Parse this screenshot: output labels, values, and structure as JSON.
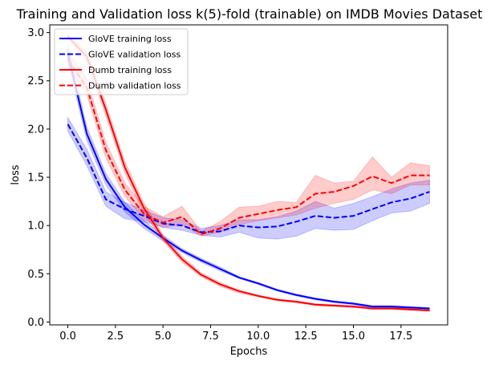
{
  "chart_data": {
    "type": "line",
    "title": "Training and Validation loss k(5)-fold (trainable) on IMDB Movies Dataset",
    "xlabel": "Epochs",
    "ylabel": "loss",
    "xlim": [
      -0.95,
      19.95
    ],
    "ylim": [
      -0.03,
      3.08
    ],
    "xticks": [
      0.0,
      2.5,
      5.0,
      7.5,
      10.0,
      12.5,
      15.0,
      17.5
    ],
    "xtick_labels": [
      "0.0",
      "2.5",
      "5.0",
      "7.5",
      "10.0",
      "12.5",
      "15.0",
      "17.5"
    ],
    "yticks": [
      0.0,
      0.5,
      1.0,
      1.5,
      2.0,
      2.5,
      3.0
    ],
    "ytick_labels": [
      "0.0",
      "0.5",
      "1.0",
      "1.5",
      "2.0",
      "2.5",
      "3.0"
    ],
    "legend_position": "top-left",
    "grid": false,
    "x": [
      0,
      1,
      2,
      3,
      4,
      5,
      6,
      7,
      8,
      9,
      10,
      11,
      12,
      13,
      14,
      15,
      16,
      17,
      18,
      19
    ],
    "series": [
      {
        "name": "GloVE training loss",
        "color": "#0000ff",
        "dash": "solid",
        "values": [
          2.78,
          1.95,
          1.48,
          1.19,
          1.01,
          0.87,
          0.74,
          0.64,
          0.55,
          0.46,
          0.4,
          0.33,
          0.28,
          0.24,
          0.21,
          0.19,
          0.16,
          0.16,
          0.15,
          0.14
        ],
        "band_lower": [
          2.7,
          1.88,
          1.42,
          1.14,
          0.97,
          0.84,
          0.72,
          0.62,
          0.53,
          0.45,
          0.39,
          0.32,
          0.27,
          0.23,
          0.2,
          0.18,
          0.15,
          0.15,
          0.14,
          0.13
        ],
        "band_upper": [
          2.86,
          2.02,
          1.54,
          1.24,
          1.05,
          0.9,
          0.76,
          0.66,
          0.57,
          0.47,
          0.41,
          0.34,
          0.29,
          0.25,
          0.22,
          0.2,
          0.17,
          0.17,
          0.16,
          0.15
        ]
      },
      {
        "name": "GloVE validation loss",
        "color": "#0000ff",
        "dash": "dashed",
        "values": [
          2.05,
          1.7,
          1.27,
          1.17,
          1.1,
          1.02,
          1.0,
          0.93,
          0.94,
          1.0,
          0.98,
          0.99,
          1.04,
          1.1,
          1.08,
          1.1,
          1.17,
          1.24,
          1.28,
          1.35
        ],
        "band_lower": [
          1.98,
          1.62,
          1.2,
          1.07,
          1.04,
          0.98,
          0.95,
          0.9,
          0.88,
          0.93,
          0.87,
          0.86,
          0.89,
          0.97,
          0.95,
          0.96,
          1.05,
          1.13,
          1.15,
          1.23
        ],
        "band_upper": [
          2.12,
          1.79,
          1.35,
          1.24,
          1.16,
          1.08,
          1.06,
          0.97,
          1.0,
          1.06,
          1.06,
          1.09,
          1.15,
          1.25,
          1.18,
          1.23,
          1.3,
          1.38,
          1.44,
          1.47
        ]
      },
      {
        "name": "Dumb training loss",
        "color": "#ff0000",
        "dash": "solid",
        "values": [
          2.96,
          2.75,
          2.2,
          1.6,
          1.18,
          0.87,
          0.65,
          0.49,
          0.39,
          0.32,
          0.27,
          0.23,
          0.21,
          0.18,
          0.17,
          0.16,
          0.14,
          0.14,
          0.13,
          0.12
        ],
        "band_lower": [
          2.94,
          2.7,
          2.14,
          1.54,
          1.13,
          0.84,
          0.62,
          0.47,
          0.37,
          0.3,
          0.26,
          0.22,
          0.2,
          0.17,
          0.16,
          0.15,
          0.13,
          0.13,
          0.12,
          0.11
        ],
        "band_upper": [
          2.98,
          2.8,
          2.26,
          1.66,
          1.23,
          0.9,
          0.68,
          0.51,
          0.41,
          0.33,
          0.28,
          0.24,
          0.22,
          0.19,
          0.18,
          0.17,
          0.15,
          0.15,
          0.14,
          0.13
        ]
      },
      {
        "name": "Dumb validation loss",
        "color": "#ff0000",
        "dash": "dashed",
        "values": [
          2.72,
          2.43,
          1.78,
          1.37,
          1.12,
          1.03,
          1.09,
          0.91,
          0.97,
          1.08,
          1.12,
          1.16,
          1.19,
          1.33,
          1.35,
          1.41,
          1.51,
          1.44,
          1.52,
          1.52
        ],
        "band_lower": [
          2.64,
          2.36,
          1.7,
          1.3,
          1.06,
          0.98,
          1.01,
          0.89,
          0.93,
          1.01,
          1.05,
          1.08,
          1.11,
          1.18,
          1.23,
          1.27,
          1.37,
          1.33,
          1.42,
          1.42
        ],
        "band_upper": [
          2.82,
          2.52,
          1.86,
          1.44,
          1.2,
          1.09,
          1.2,
          0.94,
          1.04,
          1.19,
          1.2,
          1.25,
          1.24,
          1.52,
          1.44,
          1.46,
          1.71,
          1.5,
          1.65,
          1.62
        ]
      }
    ]
  }
}
